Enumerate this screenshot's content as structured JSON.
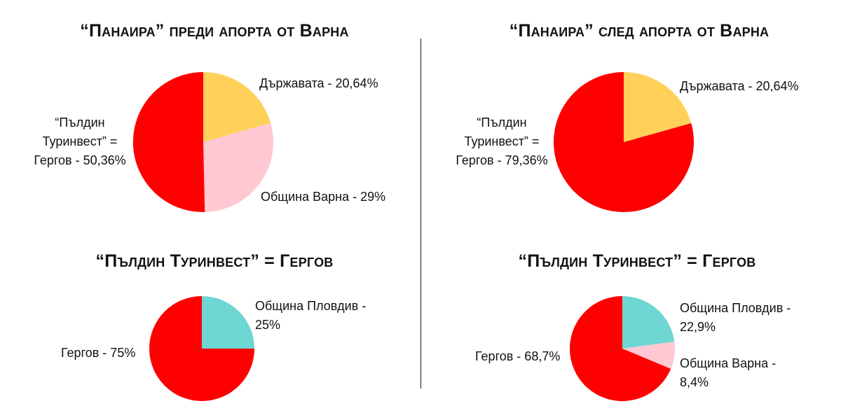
{
  "colors": {
    "red": "#FF0000",
    "yellow": "#FFD05A",
    "pink": "#FFC8D2",
    "teal": "#6ED6D3"
  },
  "chart_data": [
    {
      "type": "pie",
      "title": "“Панаира” преди апорта от Варна",
      "slices": [
        {
          "label": "Държавата - 20,64%",
          "value": 20.64,
          "color": "#FFD05A"
        },
        {
          "label": "Община Варна - 29%",
          "value": 29,
          "color": "#FFC8D2"
        },
        {
          "label": "“Пълдин Туринвест” = Гергов - 50,36%",
          "value": 50.36,
          "color": "#FF0000"
        }
      ]
    },
    {
      "type": "pie",
      "title": "“Панаира” след апорта от Варна",
      "slices": [
        {
          "label": "Държавата - 20,64%",
          "value": 20.64,
          "color": "#FFD05A"
        },
        {
          "label": "“Пълдин Туринвест” = Гергов - 79,36%",
          "value": 79.36,
          "color": "#FF0000"
        }
      ]
    },
    {
      "type": "pie",
      "title": "“Пълдин Туринвест” = Гергов",
      "slices": [
        {
          "label": "Община Пловдив - 25%",
          "value": 25,
          "color": "#6ED6D3"
        },
        {
          "label": "Гергов - 75%",
          "value": 75,
          "color": "#FF0000"
        }
      ]
    },
    {
      "type": "pie",
      "title": "“Пълдин Туринвест” = Гергов",
      "slices": [
        {
          "label": "Община Пловдив - 22,9%",
          "value": 22.9,
          "color": "#6ED6D3"
        },
        {
          "label": "Община Варна - 8,4%",
          "value": 8.4,
          "color": "#FFC8D2"
        },
        {
          "label": "Гергов - 68,7%",
          "value": 68.7,
          "color": "#FF0000"
        }
      ]
    }
  ],
  "labels": {
    "c0": {
      "s0": "Държавата - 20,64%",
      "s1": "Община Варна - 29%",
      "s2a": "“Пълдин",
      "s2b": "Туринвест” =",
      "s2c": "Гергов - 50,36%"
    },
    "c1": {
      "s0": "Държавата - 20,64%",
      "s1a": "“Пълдин",
      "s1b": "Туринвест” =",
      "s1c": "Гергов - 79,36%"
    },
    "c2": {
      "s0a": "Община Пловдив -",
      "s0b": "25%",
      "s1": "Гергов - 75%"
    },
    "c3": {
      "s0a": "Община Пловдив -",
      "s0b": "22,9%",
      "s1a": "Община Варна -",
      "s1b": "8,4%",
      "s2": "Гергов - 68,7%"
    }
  }
}
